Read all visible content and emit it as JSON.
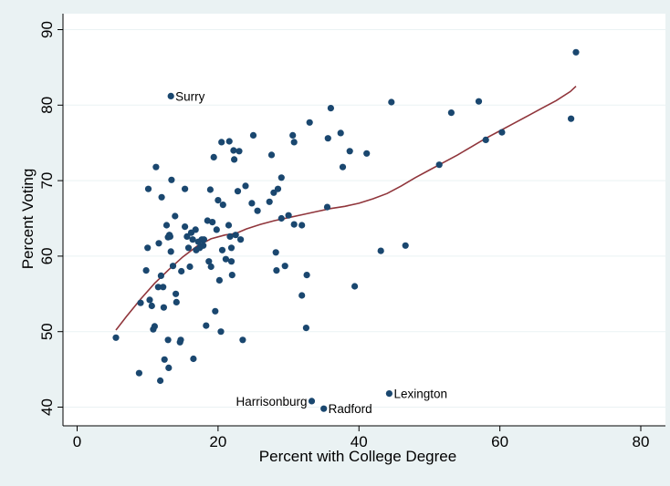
{
  "chart_data": {
    "type": "scatter",
    "title": "",
    "xlabel": "Percent with College Degree",
    "ylabel": "Percent Voting",
    "xlim": [
      0,
      80
    ],
    "ylim": [
      40,
      90
    ],
    "xticks": [
      0,
      20,
      40,
      60,
      80
    ],
    "yticks": [
      40,
      50,
      60,
      70,
      80,
      90
    ],
    "xtick_labels": [
      "0",
      "20",
      "40",
      "60",
      "80"
    ],
    "ytick_labels": [
      "40",
      "50",
      "60",
      "70",
      "80",
      "90"
    ],
    "grid": "horizontal",
    "legend": "none",
    "colors": {
      "background": "#eaf2f3",
      "plot_background": "#ffffff",
      "marker": "#1a476f",
      "smooth_line": "#90353b",
      "grid": "#eaf2f3"
    },
    "annotations": [
      {
        "label": "Surry",
        "x": 13.3,
        "y": 81.2,
        "position": "right"
      },
      {
        "label": "Harrisonburg",
        "x": 33.3,
        "y": 40.8,
        "position": "left"
      },
      {
        "label": "Radford",
        "x": 35.0,
        "y": 39.8,
        "position": "right"
      },
      {
        "label": "Lexington",
        "x": 44.3,
        "y": 41.8,
        "position": "right"
      }
    ],
    "smooth_line": [
      [
        5.5,
        50.2
      ],
      [
        7.0,
        52.0
      ],
      [
        9.0,
        54.3
      ],
      [
        11.0,
        56.4
      ],
      [
        13.0,
        58.2
      ],
      [
        15.0,
        59.9
      ],
      [
        17.0,
        61.3
      ],
      [
        19.0,
        62.3
      ],
      [
        21.0,
        62.8
      ],
      [
        22.5,
        63.0
      ],
      [
        24.0,
        63.6
      ],
      [
        26.0,
        64.2
      ],
      [
        28.0,
        64.7
      ],
      [
        30.0,
        65.1
      ],
      [
        32.0,
        65.5
      ],
      [
        34.0,
        65.9
      ],
      [
        36.0,
        66.3
      ],
      [
        38.0,
        66.6
      ],
      [
        40.0,
        67.0
      ],
      [
        42.0,
        67.6
      ],
      [
        44.0,
        68.3
      ],
      [
        46.0,
        69.3
      ],
      [
        48.0,
        70.4
      ],
      [
        50.0,
        71.4
      ],
      [
        52.0,
        72.4
      ],
      [
        54.0,
        73.4
      ],
      [
        56.0,
        74.5
      ],
      [
        58.0,
        75.6
      ],
      [
        60.0,
        76.6
      ],
      [
        62.0,
        77.6
      ],
      [
        64.0,
        78.6
      ],
      [
        66.0,
        79.6
      ],
      [
        68.0,
        80.6
      ],
      [
        70.0,
        81.8
      ],
      [
        70.8,
        82.5
      ]
    ],
    "points": [
      [
        5.5,
        49.2
      ],
      [
        8.8,
        44.5
      ],
      [
        9.0,
        53.8
      ],
      [
        9.8,
        58.1
      ],
      [
        10.0,
        61.1
      ],
      [
        10.1,
        68.9
      ],
      [
        10.3,
        54.2
      ],
      [
        10.6,
        53.4
      ],
      [
        10.8,
        50.3
      ],
      [
        11.0,
        50.7
      ],
      [
        11.2,
        71.8
      ],
      [
        11.5,
        55.9
      ],
      [
        11.6,
        61.7
      ],
      [
        11.8,
        43.5
      ],
      [
        11.9,
        57.4
      ],
      [
        12.0,
        67.8
      ],
      [
        12.2,
        55.9
      ],
      [
        12.3,
        53.2
      ],
      [
        12.4,
        46.3
      ],
      [
        12.7,
        64.1
      ],
      [
        12.9,
        62.5
      ],
      [
        12.9,
        48.9
      ],
      [
        13.0,
        45.2
      ],
      [
        13.1,
        62.8
      ],
      [
        13.2,
        62.6
      ],
      [
        13.3,
        60.6
      ],
      [
        13.3,
        81.2
      ],
      [
        13.4,
        70.1
      ],
      [
        13.6,
        58.7
      ],
      [
        13.9,
        65.3
      ],
      [
        14.0,
        55.0
      ],
      [
        14.1,
        53.9
      ],
      [
        14.6,
        48.6
      ],
      [
        14.7,
        48.9
      ],
      [
        14.8,
        58.0
      ],
      [
        15.3,
        63.9
      ],
      [
        15.3,
        68.9
      ],
      [
        15.6,
        62.6
      ],
      [
        15.8,
        61.1
      ],
      [
        16.0,
        58.6
      ],
      [
        16.2,
        63.1
      ],
      [
        16.4,
        62.2
      ],
      [
        16.5,
        46.4
      ],
      [
        16.8,
        63.5
      ],
      [
        16.9,
        60.8
      ],
      [
        17.2,
        61.9
      ],
      [
        17.4,
        61.1
      ],
      [
        17.7,
        62.2
      ],
      [
        17.9,
        61.4
      ],
      [
        18.0,
        62.2
      ],
      [
        18.3,
        50.8
      ],
      [
        18.5,
        64.7
      ],
      [
        18.7,
        59.3
      ],
      [
        18.9,
        68.8
      ],
      [
        19.0,
        58.6
      ],
      [
        19.2,
        64.5
      ],
      [
        19.4,
        73.1
      ],
      [
        19.6,
        52.7
      ],
      [
        19.8,
        63.5
      ],
      [
        20.0,
        67.4
      ],
      [
        20.2,
        56.8
      ],
      [
        20.4,
        50.0
      ],
      [
        20.5,
        75.1
      ],
      [
        20.6,
        60.8
      ],
      [
        20.7,
        66.8
      ],
      [
        21.1,
        59.6
      ],
      [
        21.5,
        64.1
      ],
      [
        21.6,
        75.2
      ],
      [
        21.7,
        62.6
      ],
      [
        21.9,
        59.3
      ],
      [
        21.9,
        61.1
      ],
      [
        22.0,
        57.5
      ],
      [
        22.2,
        74.0
      ],
      [
        22.3,
        72.8
      ],
      [
        22.5,
        62.8
      ],
      [
        22.8,
        68.6
      ],
      [
        23.0,
        73.9
      ],
      [
        23.2,
        62.2
      ],
      [
        23.5,
        48.9
      ],
      [
        23.9,
        69.3
      ],
      [
        24.8,
        67.0
      ],
      [
        25.0,
        76.0
      ],
      [
        25.6,
        66.0
      ],
      [
        27.3,
        67.2
      ],
      [
        27.6,
        73.4
      ],
      [
        27.9,
        68.4
      ],
      [
        28.2,
        60.5
      ],
      [
        28.3,
        58.1
      ],
      [
        28.5,
        68.9
      ],
      [
        29.0,
        70.4
      ],
      [
        29.0,
        65.0
      ],
      [
        29.5,
        58.7
      ],
      [
        30.0,
        65.4
      ],
      [
        30.6,
        76.0
      ],
      [
        30.8,
        64.2
      ],
      [
        30.8,
        75.1
      ],
      [
        31.9,
        64.1
      ],
      [
        31.9,
        54.8
      ],
      [
        32.5,
        50.5
      ],
      [
        32.6,
        57.5
      ],
      [
        33.0,
        77.7
      ],
      [
        33.3,
        40.8
      ],
      [
        35.0,
        39.8
      ],
      [
        35.6,
        75.6
      ],
      [
        35.5,
        66.5
      ],
      [
        36.0,
        79.6
      ],
      [
        37.4,
        76.3
      ],
      [
        37.7,
        71.8
      ],
      [
        38.7,
        73.9
      ],
      [
        39.4,
        56.0
      ],
      [
        41.1,
        73.6
      ],
      [
        43.1,
        60.7
      ],
      [
        44.3,
        41.8
      ],
      [
        44.6,
        80.4
      ],
      [
        46.6,
        61.4
      ],
      [
        51.4,
        72.1
      ],
      [
        53.1,
        79.0
      ],
      [
        57.0,
        80.5
      ],
      [
        58.0,
        75.4
      ],
      [
        60.3,
        76.4
      ],
      [
        70.1,
        78.2
      ],
      [
        70.8,
        87.0
      ]
    ]
  }
}
